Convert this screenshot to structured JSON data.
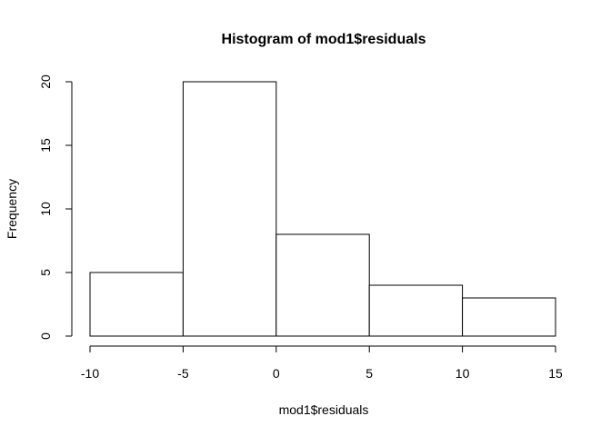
{
  "chart_data": {
    "type": "bar",
    "title": "Histogram of mod1$residuals",
    "xlabel": "mod1$residuals",
    "ylabel": "Frequency",
    "bins": [
      {
        "from": -10,
        "to": -5,
        "count": 5
      },
      {
        "from": -5,
        "to": 0,
        "count": 20
      },
      {
        "from": 0,
        "to": 5,
        "count": 8
      },
      {
        "from": 5,
        "to": 10,
        "count": 4
      },
      {
        "from": 10,
        "to": 15,
        "count": 3
      }
    ],
    "x_ticks": [
      -10,
      -5,
      0,
      5,
      10,
      15
    ],
    "x_tick_labels": [
      "-10",
      "-5",
      "0",
      "5",
      "10",
      "15"
    ],
    "y_ticks": [
      0,
      5,
      10,
      15,
      20
    ],
    "y_tick_labels": [
      "0",
      "5",
      "10",
      "15",
      "20"
    ],
    "xlim": [
      -10,
      15
    ],
    "ylim": [
      0,
      20
    ],
    "grid": false,
    "bar_fill": "#ffffff",
    "bar_stroke": "#000000"
  }
}
